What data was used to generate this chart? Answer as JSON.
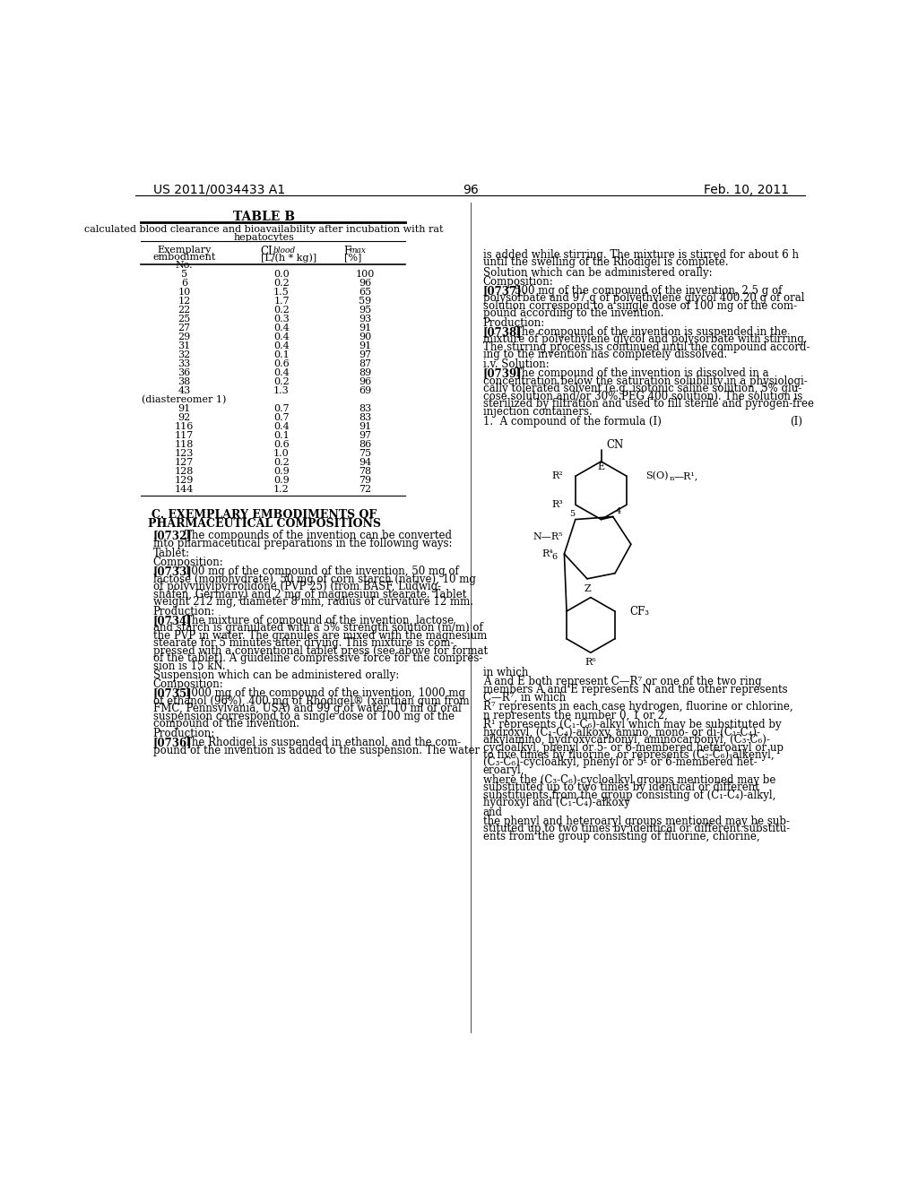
{
  "header_left": "US 2011/0034433 A1",
  "header_right": "Feb. 10, 2011",
  "page_number": "96",
  "table_title": "TABLE B",
  "table_data": [
    [
      "5",
      "0.0",
      "100"
    ],
    [
      "6",
      "0.2",
      "96"
    ],
    [
      "10",
      "1.5",
      "65"
    ],
    [
      "12",
      "1.7",
      "59"
    ],
    [
      "22",
      "0.2",
      "95"
    ],
    [
      "25",
      "0.3",
      "93"
    ],
    [
      "27",
      "0.4",
      "91"
    ],
    [
      "29",
      "0.4",
      "90"
    ],
    [
      "31",
      "0.4",
      "91"
    ],
    [
      "32",
      "0.1",
      "97"
    ],
    [
      "33",
      "0.6",
      "87"
    ],
    [
      "36",
      "0.4",
      "89"
    ],
    [
      "38",
      "0.2",
      "96"
    ],
    [
      "43",
      "1.3",
      "69"
    ],
    [
      "(diastereomer 1)",
      "",
      ""
    ],
    [
      "91",
      "0.7",
      "83"
    ],
    [
      "92",
      "0.7",
      "83"
    ],
    [
      "116",
      "0.4",
      "91"
    ],
    [
      "117",
      "0.1",
      "97"
    ],
    [
      "118",
      "0.6",
      "86"
    ],
    [
      "123",
      "1.0",
      "75"
    ],
    [
      "127",
      "0.2",
      "94"
    ],
    [
      "128",
      "0.9",
      "78"
    ],
    [
      "129",
      "0.9",
      "79"
    ],
    [
      "144",
      "1.2",
      "72"
    ]
  ]
}
